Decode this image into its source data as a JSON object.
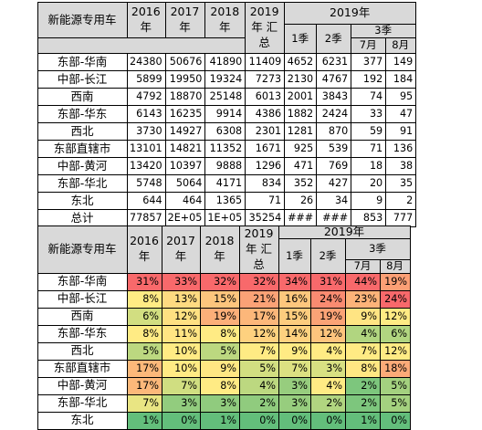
{
  "header": {
    "label": "新能源专用车",
    "years": [
      [
        "2016",
        "年"
      ],
      [
        "2017",
        "年"
      ],
      [
        "2018",
        "年"
      ],
      [
        "2019",
        "年 汇",
        "总"
      ]
    ],
    "group_2019": "2019年",
    "q1": "1季",
    "q2": "2季",
    "q3": "3季",
    "m7": "7月",
    "m8": "8月"
  },
  "volume_rows": [
    {
      "region": "东部-华南",
      "values": [
        "24380",
        "50676",
        "41890",
        "11409",
        "4652",
        "6231",
        "377",
        "149"
      ]
    },
    {
      "region": "中部-长江",
      "values": [
        "5899",
        "19950",
        "19324",
        "7273",
        "2130",
        "4767",
        "192",
        "184"
      ]
    },
    {
      "region": "西南",
      "values": [
        "4792",
        "18870",
        "25148",
        "6013",
        "2001",
        "3843",
        "74",
        "95"
      ]
    },
    {
      "region": "东部-华东",
      "values": [
        "6143",
        "16235",
        "9914",
        "4386",
        "1882",
        "2424",
        "33",
        "47"
      ]
    },
    {
      "region": "西北",
      "values": [
        "3730",
        "14927",
        "6308",
        "2301",
        "1281",
        "870",
        "59",
        "91"
      ]
    },
    {
      "region": "东部直辖市",
      "values": [
        "13101",
        "14821",
        "11352",
        "1671",
        "925",
        "539",
        "71",
        "136"
      ]
    },
    {
      "region": "中部-黄河",
      "values": [
        "13420",
        "10397",
        "9888",
        "1296",
        "471",
        "769",
        "18",
        "38"
      ]
    },
    {
      "region": "东部-华北",
      "values": [
        "5748",
        "5064",
        "4171",
        "834",
        "352",
        "427",
        "20",
        "35"
      ]
    },
    {
      "region": "东北",
      "values": [
        "644",
        "464",
        "1365",
        "71",
        "26",
        "34",
        "9",
        "2"
      ]
    },
    {
      "region": "总计",
      "values": [
        "77857",
        "2E+05",
        "1E+05",
        "35254",
        "###",
        "###",
        "853",
        "777"
      ]
    }
  ],
  "share_rows": [
    {
      "region": "东部-华南",
      "values": [
        "31%",
        "33%",
        "32%",
        "32%",
        "34%",
        "31%",
        "44%",
        "19%"
      ]
    },
    {
      "region": "中部-长江",
      "values": [
        "8%",
        "13%",
        "15%",
        "21%",
        "16%",
        "24%",
        "23%",
        "24%"
      ]
    },
    {
      "region": "西南",
      "values": [
        "6%",
        "12%",
        "19%",
        "17%",
        "15%",
        "19%",
        "9%",
        "12%"
      ]
    },
    {
      "region": "东部-华东",
      "values": [
        "8%",
        "11%",
        "8%",
        "12%",
        "14%",
        "12%",
        "4%",
        "6%"
      ]
    },
    {
      "region": "西北",
      "values": [
        "5%",
        "10%",
        "5%",
        "7%",
        "9%",
        "4%",
        "7%",
        "12%"
      ]
    },
    {
      "region": "东部直辖市",
      "values": [
        "17%",
        "10%",
        "9%",
        "5%",
        "7%",
        "3%",
        "8%",
        "18%"
      ]
    },
    {
      "region": "中部-黄河",
      "values": [
        "17%",
        "7%",
        "8%",
        "4%",
        "3%",
        "4%",
        "2%",
        "5%"
      ]
    },
    {
      "region": "东部-华北",
      "values": [
        "7%",
        "3%",
        "3%",
        "2%",
        "3%",
        "2%",
        "2%",
        "5%"
      ]
    },
    {
      "region": "东北",
      "values": [
        "1%",
        "0%",
        "1%",
        "0%",
        "0%",
        "0%",
        "1%",
        "0%"
      ]
    }
  ],
  "heat_colors": {
    "low": "#f8696b",
    "mid": "#ffeb84",
    "high": "#63be7b"
  }
}
